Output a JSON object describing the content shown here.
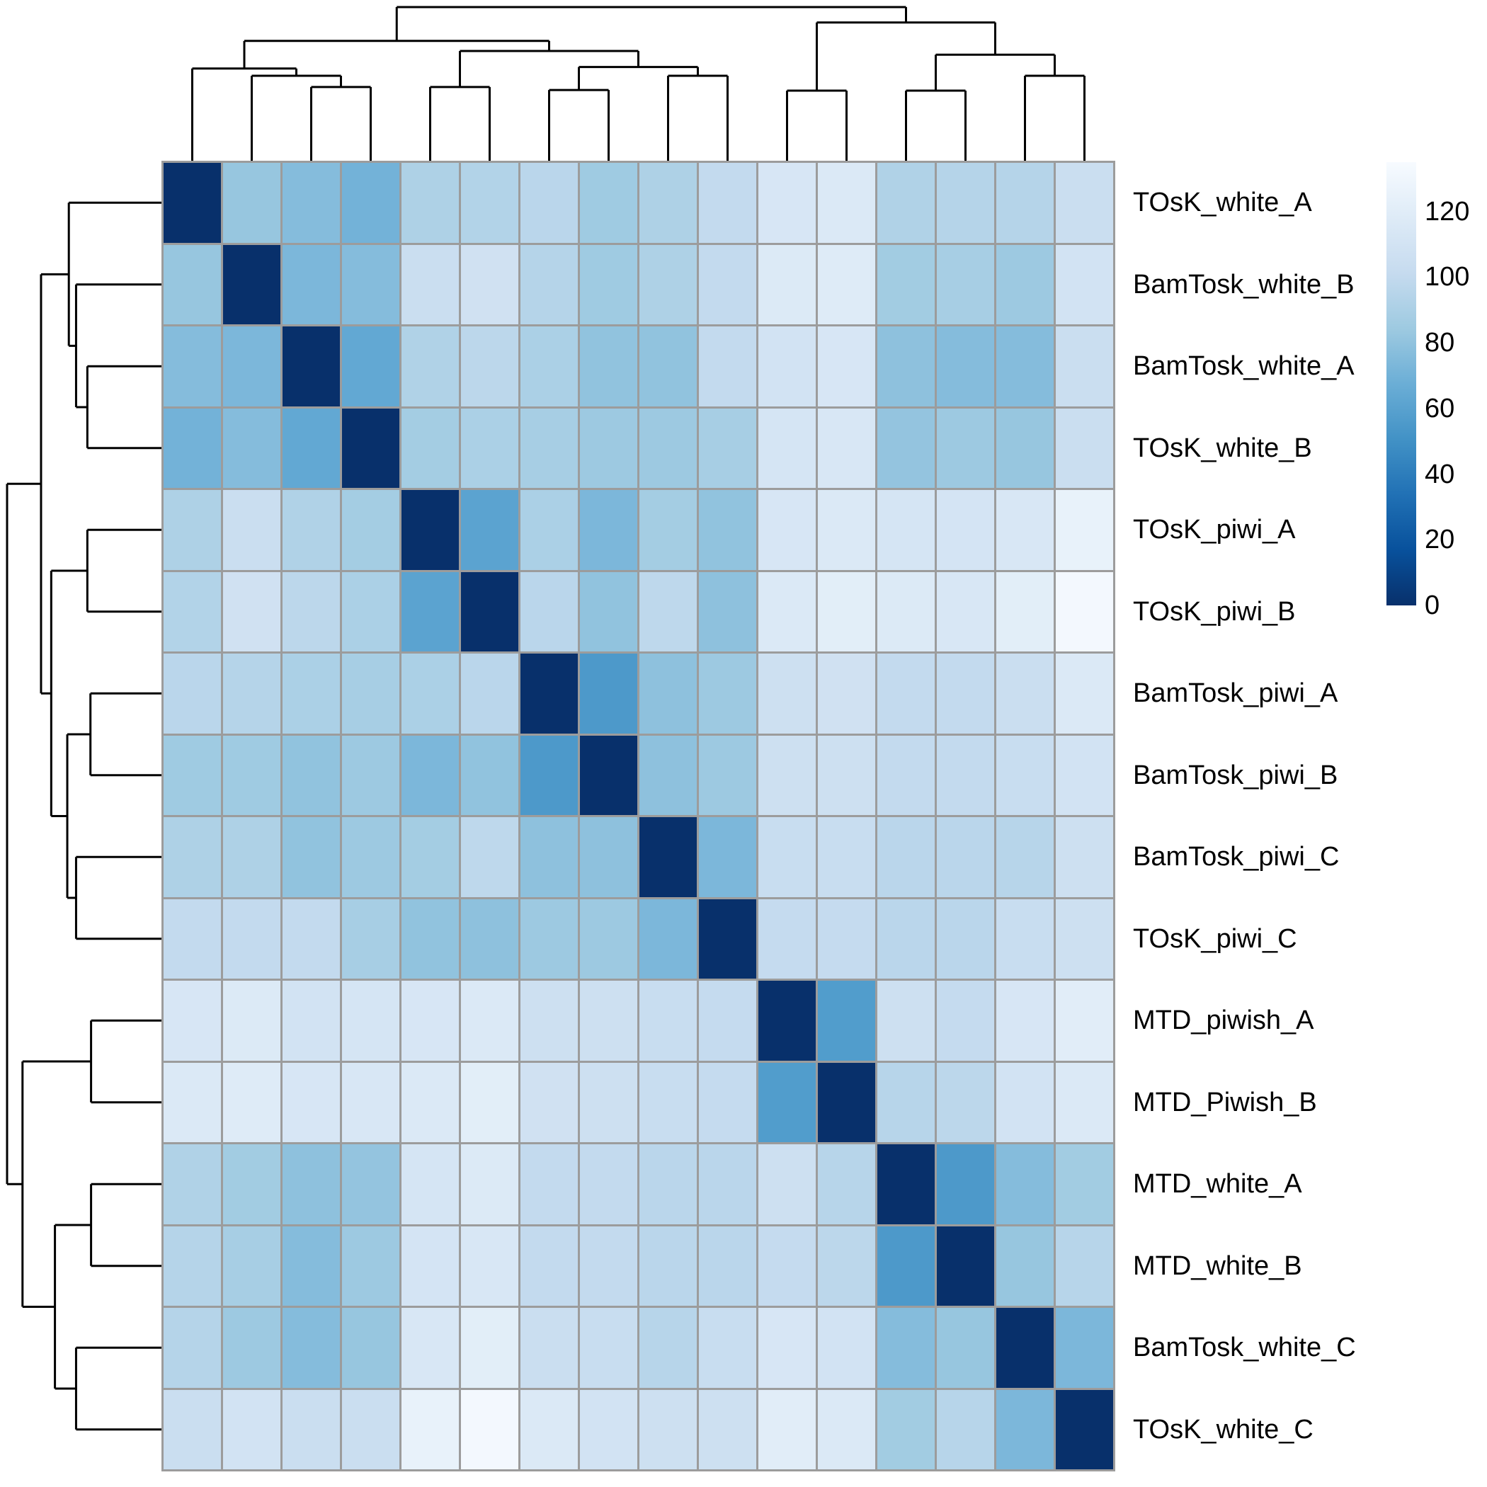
{
  "chart_data": {
    "type": "heatmap",
    "title": "",
    "subtitle": "",
    "description": "Hierarchically clustered sample-to-sample distance matrix with row and column dendrograms",
    "legend_position": "right",
    "grid": true,
    "samples": [
      "TOsK_white_A",
      "BamTosk_white_B",
      "BamTosk_white_A",
      "TOsK_white_B",
      "TOsK_piwi_A",
      "TOsK_piwi_B",
      "BamTosk_piwi_A",
      "BamTosk_piwi_B",
      "BamTosk_piwi_C",
      "TOsK_piwi_C",
      "MTD_piwish_A",
      "MTD_Piwish_B",
      "MTD_white_A",
      "MTD_white_B",
      "BamTosk_white_C",
      "TOsK_white_C"
    ],
    "matrix": [
      [
        0,
        82,
        76,
        70,
        91,
        93,
        96,
        85,
        91,
        100,
        113,
        116,
        92,
        94,
        94,
        104
      ],
      [
        82,
        0,
        73,
        76,
        104,
        108,
        94,
        85,
        91,
        100,
        117,
        118,
        86,
        88,
        84,
        110
      ],
      [
        76,
        73,
        0,
        64,
        92,
        97,
        90,
        80,
        80,
        100,
        110,
        113,
        79,
        76,
        76,
        104
      ],
      [
        70,
        76,
        64,
        0,
        87,
        90,
        88,
        84,
        84,
        88,
        112,
        114,
        81,
        84,
        82,
        104
      ],
      [
        91,
        104,
        92,
        87,
        0,
        61,
        90,
        73,
        87,
        80,
        113,
        116,
        112,
        111,
        114,
        125
      ],
      [
        93,
        108,
        97,
        90,
        61,
        0,
        96,
        80,
        98,
        79,
        116,
        121,
        117,
        114,
        121,
        132
      ],
      [
        96,
        94,
        90,
        88,
        90,
        96,
        0,
        55,
        79,
        84,
        106,
        108,
        100,
        100,
        104,
        116
      ],
      [
        85,
        85,
        80,
        84,
        73,
        80,
        55,
        0,
        79,
        84,
        106,
        106,
        100,
        100,
        103,
        110
      ],
      [
        91,
        91,
        80,
        84,
        87,
        98,
        79,
        79,
        0,
        73,
        103,
        103,
        96,
        96,
        95,
        106
      ],
      [
        100,
        100,
        100,
        88,
        80,
        79,
        84,
        84,
        73,
        0,
        101,
        101,
        96,
        96,
        103,
        106
      ],
      [
        113,
        117,
        110,
        112,
        113,
        116,
        106,
        106,
        103,
        101,
        0,
        57,
        106,
        101,
        113,
        120
      ],
      [
        116,
        118,
        113,
        114,
        116,
        121,
        108,
        106,
        103,
        101,
        57,
        0,
        95,
        97,
        110,
        116
      ],
      [
        92,
        86,
        79,
        81,
        112,
        117,
        100,
        100,
        96,
        96,
        106,
        95,
        0,
        55,
        76,
        86
      ],
      [
        94,
        88,
        76,
        84,
        111,
        114,
        100,
        100,
        96,
        96,
        101,
        97,
        55,
        0,
        82,
        95
      ],
      [
        94,
        84,
        76,
        82,
        114,
        121,
        104,
        103,
        95,
        103,
        113,
        110,
        76,
        82,
        0,
        73
      ],
      [
        104,
        110,
        104,
        104,
        125,
        132,
        116,
        110,
        106,
        106,
        120,
        116,
        86,
        95,
        73,
        0
      ]
    ],
    "color_scale": {
      "min": 0,
      "max": 135,
      "palette_low_to_high": [
        "#08306B",
        "#08519C",
        "#2171B5",
        "#4292C6",
        "#6BAED6",
        "#9ECAE1",
        "#C6DBEF",
        "#DEEBF7",
        "#F7FBFF"
      ],
      "grid_color": "#9c9c9c",
      "dendrogram_color": "#000000"
    },
    "dendrogram_tree": {
      "h": 1.0,
      "children": [
        {
          "h": 0.78,
          "children": [
            {
              "h": 0.6,
              "children": [
                0,
                {
                  "h": 0.553,
                  "children": [
                    1,
                    {
                      "h": 0.48,
                      "children": [
                        2,
                        3
                      ]
                    }
                  ]
                }
              ]
            },
            {
              "h": 0.714,
              "children": [
                {
                  "h": 0.48,
                  "children": [
                    4,
                    5
                  ]
                },
                {
                  "h": 0.61,
                  "children": [
                    {
                      "h": 0.46,
                      "children": [
                        6,
                        7
                      ]
                    },
                    {
                      "h": 0.553,
                      "children": [
                        8,
                        9
                      ]
                    }
                  ]
                }
              ]
            }
          ]
        },
        {
          "h": 0.9,
          "children": [
            {
              "h": 0.456,
              "children": [
                10,
                11
              ]
            },
            {
              "h": 0.69,
              "children": [
                {
                  "h": 0.456,
                  "children": [
                    12,
                    13
                  ]
                },
                {
                  "h": 0.553,
                  "children": [
                    14,
                    15
                  ]
                }
              ]
            }
          ]
        }
      ]
    }
  },
  "legend": {
    "ticks": [
      "120",
      "100",
      "80",
      "60",
      "40",
      "20",
      "0"
    ],
    "tick_values": [
      120,
      100,
      80,
      60,
      40,
      20,
      0
    ]
  }
}
